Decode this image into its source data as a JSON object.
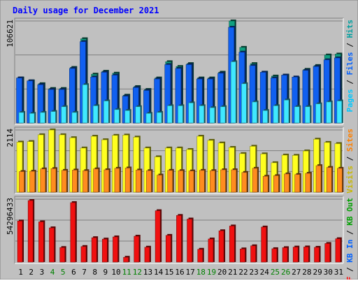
{
  "title": "Daily usage for December 2021",
  "colors": {
    "background": "#c0c0c0",
    "panel_border": "#ffffff",
    "title": "#0000ff",
    "hits": "#00c0c0",
    "files": "#0000ff",
    "pages": "#00d8ff",
    "pages_bar": "#1060f0",
    "files_bar": "#40e8ff",
    "visits": "#c8b800",
    "visits_bar": "#ffff20",
    "sites": "#ff8000",
    "sites_bar": "#ff8c20",
    "kb_f": "#ff0000",
    "kb_in": "#0060ff",
    "kb_out": "#00a000",
    "kb_bar": "#f01010",
    "weekend_label": "#008000",
    "gridline": "#808080"
  },
  "chart_data": [
    {
      "type": "bar",
      "name": "pages-files",
      "ymax_label": "106621",
      "ylim": [
        0,
        106621
      ],
      "right_label": [
        {
          "text": "Pages",
          "color": "#00c8ff"
        },
        {
          "text": " / ",
          "color": "#000000"
        },
        {
          "text": "Files",
          "color": "#0060ff"
        },
        {
          "text": " / ",
          "color": "#000000"
        },
        {
          "text": "Hits",
          "color": "#00a0a0"
        }
      ],
      "categories": [
        "1",
        "2",
        "3",
        "4",
        "5",
        "6",
        "7",
        "8",
        "9",
        "10",
        "11",
        "12",
        "13",
        "14",
        "15",
        "16",
        "17",
        "18",
        "19",
        "20",
        "21",
        "22",
        "23",
        "24",
        "25",
        "26",
        "27",
        "28",
        "29",
        "30",
        "31"
      ],
      "series": [
        {
          "name": "Hits",
          "values": [
            47000,
            44000,
            41000,
            36000,
            36000,
            58000,
            88000,
            51000,
            54000,
            52000,
            29000,
            38000,
            35000,
            47000,
            64000,
            59000,
            62000,
            47000,
            47000,
            53000,
            106621,
            79000,
            62000,
            53000,
            49000,
            50000,
            47000,
            56000,
            60000,
            71000,
            72000
          ]
        },
        {
          "name": "Files",
          "values": [
            47000,
            44000,
            40000,
            35000,
            35000,
            57000,
            85000,
            48000,
            53000,
            50000,
            28000,
            37000,
            34000,
            46000,
            61000,
            57000,
            61000,
            46000,
            46000,
            52000,
            100000,
            74000,
            60000,
            53000,
            47000,
            50000,
            48000,
            55000,
            59000,
            66000,
            68000
          ]
        },
        {
          "name": "Pages",
          "values": [
            11000,
            10000,
            11000,
            12000,
            17000,
            11000,
            40000,
            18000,
            23000,
            14000,
            13000,
            17000,
            10000,
            11000,
            18000,
            18000,
            21000,
            18000,
            16000,
            17000,
            64000,
            41000,
            22000,
            13000,
            18000,
            24000,
            17000,
            17000,
            20000,
            22000,
            23000
          ]
        }
      ]
    },
    {
      "type": "bar",
      "name": "visits-sites",
      "ymax_label": "2114",
      "ylim": [
        0,
        2114
      ],
      "right_label": [
        {
          "text": "Visits",
          "color": "#c8b800"
        },
        {
          "text": " / ",
          "color": "#000000"
        },
        {
          "text": "Sites",
          "color": "#ff8000"
        }
      ],
      "categories": [
        "1",
        "2",
        "3",
        "4",
        "5",
        "6",
        "7",
        "8",
        "9",
        "10",
        "11",
        "12",
        "13",
        "14",
        "15",
        "16",
        "17",
        "18",
        "19",
        "20",
        "21",
        "22",
        "23",
        "24",
        "25",
        "26",
        "27",
        "28",
        "29",
        "30",
        "31"
      ],
      "series": [
        {
          "name": "Visits",
          "values": [
            1700,
            1720,
            1950,
            2114,
            1950,
            1850,
            1500,
            1900,
            1780,
            1930,
            1940,
            1870,
            1500,
            1200,
            1500,
            1500,
            1450,
            1900,
            1760,
            1670,
            1520,
            1310,
            1560,
            1300,
            1000,
            1260,
            1250,
            1400,
            1800,
            1690,
            1650
          ]
        },
        {
          "name": "Sites",
          "values": [
            700,
            710,
            790,
            800,
            740,
            750,
            730,
            790,
            760,
            810,
            820,
            750,
            730,
            580,
            740,
            730,
            720,
            740,
            730,
            760,
            760,
            670,
            810,
            540,
            560,
            620,
            600,
            640,
            900,
            840,
            810
          ]
        }
      ]
    },
    {
      "type": "bar",
      "name": "kbytes",
      "ymax_label": "54296433",
      "ylim": [
        0,
        54296433
      ],
      "right_label": [
        {
          "text": "KB F",
          "color": "#ff0000"
        },
        {
          "text": " / ",
          "color": "#000000"
        },
        {
          "text": "KB In",
          "color": "#0060ff"
        },
        {
          "text": " / ",
          "color": "#000000"
        },
        {
          "text": "KB Out",
          "color": "#00a000"
        }
      ],
      "categories": [
        "1",
        "2",
        "3",
        "4",
        "5",
        "6",
        "7",
        "8",
        "9",
        "10",
        "11",
        "12",
        "13",
        "14",
        "15",
        "16",
        "17",
        "18",
        "19",
        "20",
        "21",
        "22",
        "23",
        "24",
        "25",
        "26",
        "27",
        "28",
        "29",
        "30",
        "31"
      ],
      "series": [
        {
          "name": "KB F",
          "values": [
            35400000,
            53100000,
            34700000,
            29500000,
            12500000,
            51300000,
            13400000,
            21000000,
            19800000,
            21700000,
            4100000,
            22300000,
            12800000,
            44300000,
            23000000,
            40200000,
            37100000,
            11000000,
            19900000,
            27000000,
            31100000,
            11300000,
            14000000,
            30200000,
            11500000,
            12400000,
            12900000,
            13000000,
            12700000,
            16000000,
            20100000
          ]
        }
      ]
    }
  ],
  "x_labels": [
    {
      "text": "1",
      "weekend": false
    },
    {
      "text": "2",
      "weekend": false
    },
    {
      "text": "3",
      "weekend": false
    },
    {
      "text": "4",
      "weekend": true
    },
    {
      "text": "5",
      "weekend": true
    },
    {
      "text": "6",
      "weekend": false
    },
    {
      "text": "7",
      "weekend": false
    },
    {
      "text": "8",
      "weekend": false
    },
    {
      "text": "9",
      "weekend": false
    },
    {
      "text": "10",
      "weekend": false
    },
    {
      "text": "11",
      "weekend": true
    },
    {
      "text": "12",
      "weekend": true
    },
    {
      "text": "13",
      "weekend": false
    },
    {
      "text": "14",
      "weekend": false
    },
    {
      "text": "15",
      "weekend": false
    },
    {
      "text": "16",
      "weekend": false
    },
    {
      "text": "17",
      "weekend": false
    },
    {
      "text": "18",
      "weekend": true
    },
    {
      "text": "19",
      "weekend": true
    },
    {
      "text": "20",
      "weekend": false
    },
    {
      "text": "21",
      "weekend": false
    },
    {
      "text": "22",
      "weekend": false
    },
    {
      "text": "23",
      "weekend": false
    },
    {
      "text": "24",
      "weekend": false
    },
    {
      "text": "25",
      "weekend": true
    },
    {
      "text": "26",
      "weekend": true
    },
    {
      "text": "27",
      "weekend": false
    },
    {
      "text": "28",
      "weekend": false
    },
    {
      "text": "29",
      "weekend": false
    },
    {
      "text": "30",
      "weekend": false
    },
    {
      "text": "31",
      "weekend": false
    }
  ]
}
